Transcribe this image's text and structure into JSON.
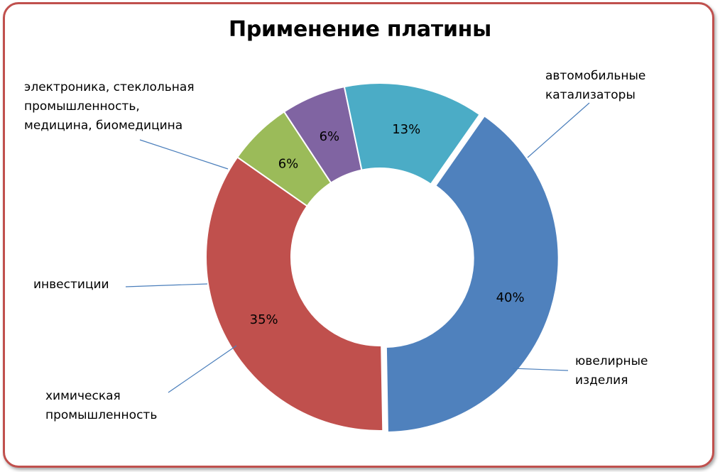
{
  "chart_data": {
    "type": "pie",
    "subtype": "doughnut",
    "title": "Применение платины",
    "series": [
      {
        "name": "",
        "slices": [
          {
            "label_lines": [
              "автомобильные",
              "катализаторы"
            ],
            "value": 40,
            "value_label": "40%",
            "color": "#4f81bd"
          },
          {
            "label_lines": [
              "ювелирные",
              "изделия"
            ],
            "value": 35,
            "value_label": "35%",
            "color": "#c0504d"
          },
          {
            "label_lines": [
              "химическая",
              "промышленность"
            ],
            "value": 6,
            "value_label": "6%",
            "color": "#9bbb59"
          },
          {
            "label_lines": [
              "инвестиции"
            ],
            "value": 6,
            "value_label": "6%",
            "color": "#8064a2"
          },
          {
            "label_lines": [
              "электроника, стеклольная",
              "промышленность,",
              "медицина, биомедицина"
            ],
            "value": 13,
            "value_label": "13%",
            "color": "#4bacc6"
          }
        ]
      }
    ],
    "legend": "none"
  },
  "frame_color": "#c0504d"
}
